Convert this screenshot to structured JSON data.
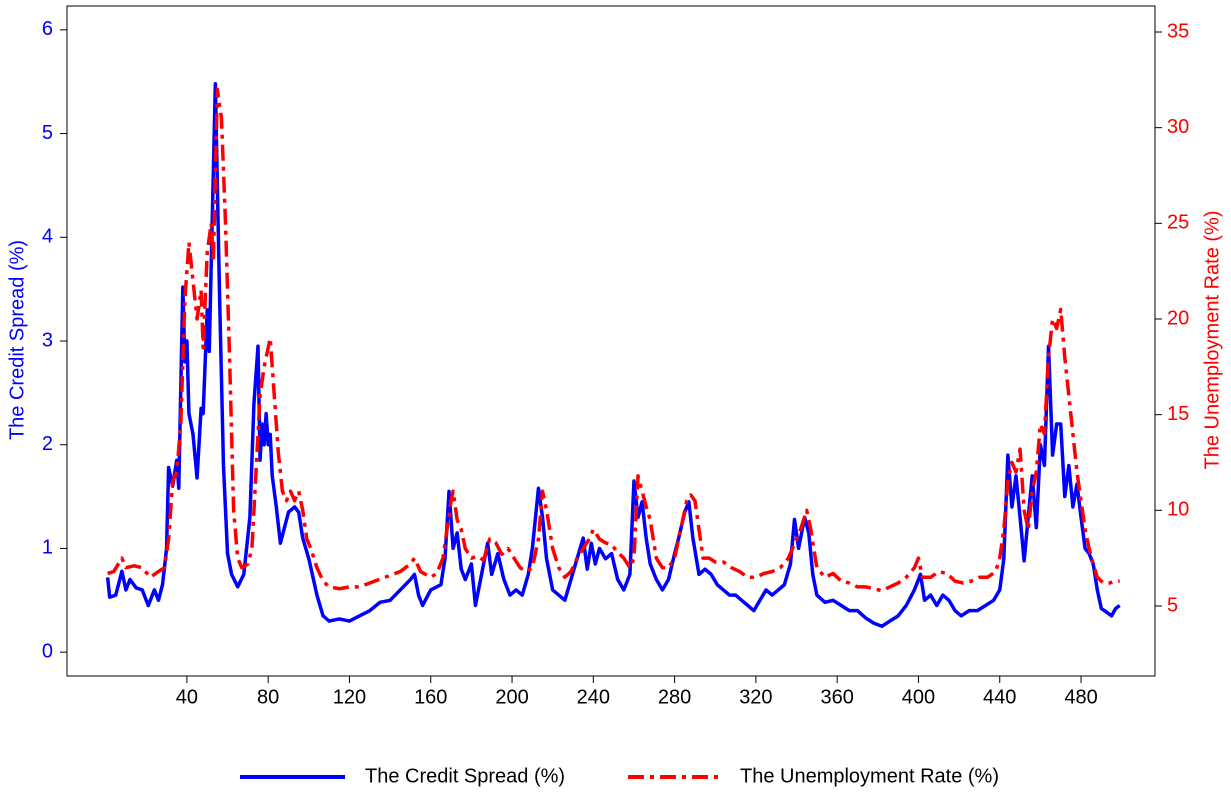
{
  "chart_data": {
    "type": "line",
    "y_label": "The Credit Spread (%)",
    "y2_label": "The Unemployment Rate (%)",
    "xlim": [
      -19,
      516.4
    ],
    "xticks": [
      40,
      80,
      120,
      160,
      200,
      240,
      280,
      320,
      360,
      400,
      440,
      480
    ],
    "ylim": [
      -0.23,
      6.23
    ],
    "yticks": [
      0,
      1,
      2,
      3,
      4,
      5,
      6
    ],
    "y2lim": [
      1.34,
      36.36
    ],
    "y2ticks": [
      5,
      10,
      15,
      20,
      25,
      30,
      35
    ],
    "legend": "bottom",
    "series": [
      {
        "name": "The Credit Spread (%)",
        "color": "#0000ff",
        "dash": "solid",
        "x": [
          1,
          2,
          5,
          8,
          10,
          12,
          15,
          18,
          21,
          24,
          26,
          28,
          30,
          31,
          33,
          35,
          36,
          38,
          39,
          40,
          41,
          43,
          45,
          47,
          48,
          50,
          51,
          54,
          56,
          58,
          60,
          62,
          65,
          68,
          71,
          73,
          75,
          76,
          77,
          78,
          79,
          80,
          81,
          82,
          84,
          86,
          88,
          90,
          93,
          95,
          97,
          100,
          104,
          107,
          110,
          115,
          120,
          125,
          130,
          135,
          140,
          145,
          150,
          152,
          154,
          156,
          160,
          165,
          167,
          169,
          171,
          173,
          175,
          177,
          180,
          182,
          185,
          188,
          190,
          193,
          196,
          199,
          202,
          205,
          208,
          210,
          213,
          215,
          217,
          220,
          223,
          226,
          229,
          232,
          235,
          237,
          239,
          241,
          243,
          246,
          249,
          252,
          255,
          258,
          260,
          262,
          264,
          266,
          268,
          271,
          274,
          277,
          280,
          282,
          285,
          287,
          289,
          292,
          295,
          298,
          301,
          304,
          307,
          310,
          313,
          316,
          319,
          322,
          325,
          328,
          331,
          334,
          337,
          339,
          341,
          344,
          346,
          348,
          350,
          354,
          358,
          362,
          366,
          370,
          374,
          378,
          382,
          386,
          390,
          394,
          398,
          401,
          403,
          406,
          409,
          412,
          415,
          418,
          421,
          425,
          429,
          433,
          437,
          440,
          442,
          444,
          446,
          448,
          450,
          452,
          454,
          456,
          458,
          460,
          462,
          464,
          466,
          468,
          470,
          472,
          474,
          476,
          478,
          480,
          482,
          484,
          486,
          488,
          490,
          493,
          495,
          497,
          499
        ],
        "values": [
          0.72,
          0.53,
          0.55,
          0.78,
          0.6,
          0.7,
          0.62,
          0.6,
          0.45,
          0.6,
          0.5,
          0.65,
          1.0,
          1.78,
          1.6,
          1.85,
          1.58,
          3.52,
          2.8,
          3.0,
          2.3,
          2.1,
          1.68,
          2.35,
          2.3,
          3.3,
          2.9,
          5.48,
          3.5,
          1.8,
          0.95,
          0.75,
          0.63,
          0.75,
          1.3,
          2.4,
          2.95,
          1.85,
          2.2,
          2.0,
          2.3,
          2.0,
          2.1,
          1.7,
          1.4,
          1.05,
          1.2,
          1.35,
          1.4,
          1.35,
          1.1,
          0.9,
          0.55,
          0.35,
          0.3,
          0.32,
          0.3,
          0.35,
          0.4,
          0.48,
          0.5,
          0.6,
          0.7,
          0.75,
          0.55,
          0.45,
          0.6,
          0.65,
          0.9,
          1.55,
          1.0,
          1.15,
          0.8,
          0.7,
          0.85,
          0.45,
          0.75,
          1.05,
          0.75,
          0.95,
          0.7,
          0.55,
          0.6,
          0.55,
          0.75,
          1.0,
          1.58,
          1.3,
          0.9,
          0.6,
          0.55,
          0.5,
          0.7,
          0.9,
          1.1,
          0.8,
          1.05,
          0.85,
          1.0,
          0.9,
          0.95,
          0.7,
          0.6,
          0.75,
          1.65,
          1.3,
          1.45,
          1.1,
          0.85,
          0.7,
          0.6,
          0.7,
          0.95,
          1.1,
          1.35,
          1.45,
          1.1,
          0.75,
          0.8,
          0.75,
          0.65,
          0.6,
          0.55,
          0.55,
          0.5,
          0.45,
          0.4,
          0.5,
          0.6,
          0.55,
          0.6,
          0.65,
          0.85,
          1.28,
          1.0,
          1.3,
          1.15,
          0.75,
          0.55,
          0.48,
          0.5,
          0.45,
          0.4,
          0.4,
          0.33,
          0.28,
          0.25,
          0.3,
          0.35,
          0.45,
          0.6,
          0.75,
          0.5,
          0.55,
          0.45,
          0.55,
          0.5,
          0.4,
          0.35,
          0.4,
          0.4,
          0.45,
          0.5,
          0.6,
          0.9,
          1.9,
          1.4,
          1.7,
          1.3,
          0.88,
          1.3,
          1.7,
          1.2,
          2.0,
          1.8,
          2.95,
          1.9,
          2.2,
          2.2,
          1.5,
          1.8,
          1.4,
          1.62,
          1.3,
          1.0,
          0.95,
          0.85,
          0.6,
          0.42,
          0.38,
          0.35,
          0.42,
          0.45
        ]
      },
      {
        "name": "The Unemployment Rate (%)",
        "color": "#ff0000",
        "dash": "dashdot",
        "axis": "y2",
        "x": [
          1,
          4,
          8,
          10,
          14,
          18,
          22,
          26,
          29,
          31,
          33,
          35,
          37,
          39,
          41,
          43,
          45,
          47,
          48,
          50,
          52,
          53,
          55,
          57,
          59,
          61,
          63,
          65,
          67,
          70,
          72,
          74,
          76,
          78,
          80,
          81,
          83,
          85,
          87,
          89,
          91,
          93,
          95,
          97,
          99,
          101,
          104,
          107,
          110,
          115,
          120,
          125,
          130,
          135,
          140,
          145,
          150,
          152,
          155,
          160,
          163,
          166,
          168,
          170,
          171,
          173,
          175,
          177,
          180,
          183,
          186,
          189,
          192,
          195,
          198,
          201,
          204,
          207,
          210,
          213,
          215,
          217,
          220,
          223,
          226,
          229,
          232,
          235,
          238,
          240,
          243,
          246,
          249,
          252,
          255,
          258,
          260,
          262,
          264,
          266,
          268,
          271,
          274,
          277,
          280,
          283,
          286,
          288,
          290,
          292,
          294,
          297,
          300,
          304,
          308,
          312,
          316,
          320,
          324,
          328,
          332,
          336,
          340,
          342,
          345,
          347,
          350,
          354,
          358,
          362,
          366,
          370,
          374,
          378,
          382,
          386,
          390,
          394,
          398,
          400,
          402,
          406,
          410,
          414,
          418,
          422,
          426,
          430,
          434,
          438,
          440,
          442,
          444,
          446,
          448,
          450,
          452,
          454,
          456,
          458,
          460,
          462,
          464,
          466,
          468,
          470,
          472,
          474,
          476,
          478,
          480,
          482,
          484,
          486,
          488,
          491,
          494,
          497,
          499
        ],
        "values": [
          6.7,
          6.8,
          7.5,
          7.0,
          7.1,
          7.0,
          6.5,
          6.8,
          7.0,
          8.5,
          11.5,
          12.0,
          14.5,
          21,
          24,
          22,
          20,
          21.5,
          18.5,
          23.5,
          25,
          23.0,
          32,
          30.5,
          25,
          18,
          10,
          7.5,
          7.0,
          7.2,
          8.0,
          12,
          16,
          17.5,
          18.5,
          19,
          16,
          13,
          11,
          10.5,
          11,
          10.5,
          11.0,
          10,
          8.5,
          8.0,
          7.0,
          6.3,
          6.0,
          5.9,
          6.0,
          6.0,
          6.2,
          6.4,
          6.6,
          6.8,
          7.2,
          7.5,
          6.8,
          6.5,
          6.7,
          7.5,
          9,
          10.5,
          11.0,
          9.5,
          9.0,
          8.0,
          7.5,
          7.6,
          7.4,
          8.5,
          8.3,
          7.7,
          8.0,
          7.5,
          7.0,
          6.8,
          7.0,
          8.5,
          11.0,
          10.0,
          8.0,
          7.0,
          6.5,
          6.8,
          7.5,
          8.0,
          8.5,
          9.0,
          8.5,
          8.3,
          8.2,
          7.8,
          7.5,
          7.0,
          7.5,
          11.8,
          11.0,
          10.2,
          9.5,
          7.5,
          7.0,
          7.0,
          7.5,
          9.0,
          10.5,
          10.8,
          10.5,
          9.0,
          7.5,
          7.5,
          7.3,
          7.3,
          7.0,
          6.8,
          6.5,
          6.5,
          6.7,
          6.8,
          7.0,
          7.5,
          8.5,
          9.0,
          10.0,
          9.0,
          7.0,
          6.5,
          6.7,
          6.3,
          6.2,
          6.0,
          6.0,
          5.9,
          5.8,
          6.0,
          6.2,
          6.5,
          7.0,
          7.5,
          6.5,
          6.5,
          6.8,
          6.7,
          6.3,
          6.2,
          6.3,
          6.5,
          6.5,
          6.8,
          7.5,
          9,
          11.5,
          12.5,
          12,
          13.2,
          10.0,
          9.0,
          11,
          12.0,
          14.5,
          14.0,
          18.0,
          20.0,
          19.5,
          20.5,
          18.0,
          16.0,
          14.0,
          12.0,
          10.5,
          9.0,
          8.0,
          7.2,
          6.5,
          6.2,
          6.2,
          6.3,
          6.3
        ]
      }
    ]
  }
}
